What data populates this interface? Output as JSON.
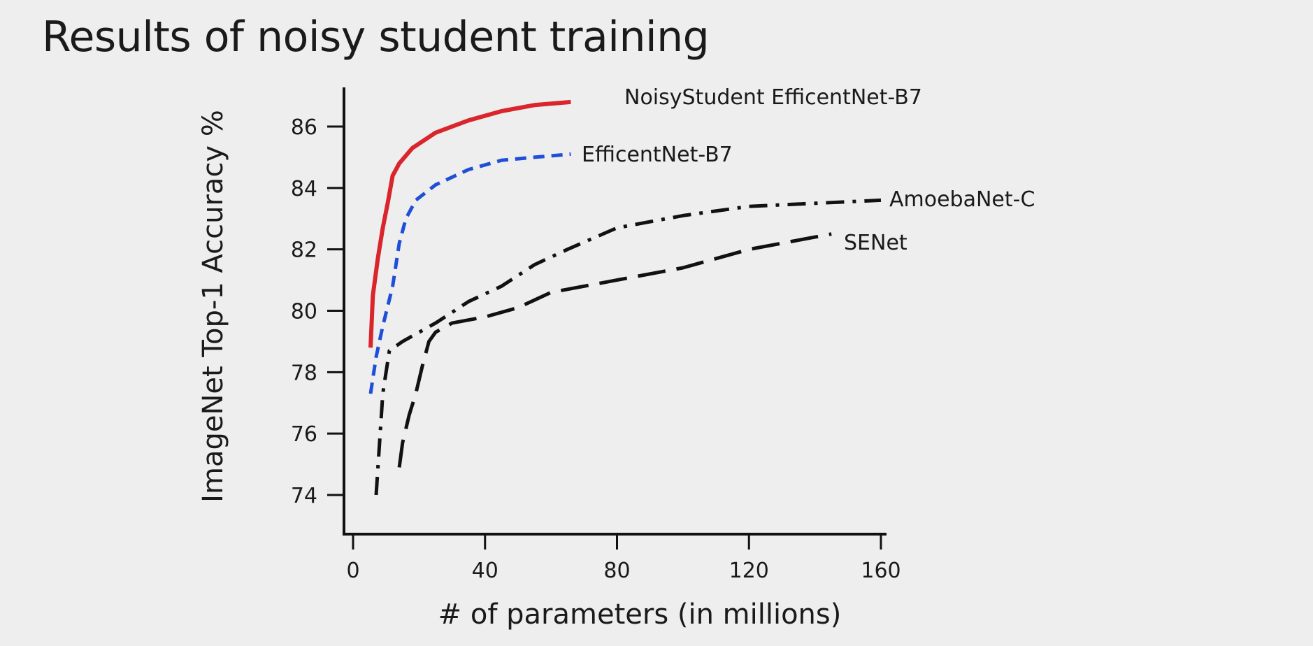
{
  "slide": {
    "title": "Results of noisy student training"
  },
  "chart_data": {
    "type": "line",
    "title": "",
    "xlabel": "# of parameters (in millions)",
    "ylabel": "ImageNet Top-1 Accuracy %",
    "xlim": [
      0,
      160
    ],
    "ylim": [
      73,
      86.5
    ],
    "xticks": [
      0,
      40,
      80,
      120,
      160
    ],
    "yticks": [
      74,
      76,
      78,
      80,
      82,
      84,
      86
    ],
    "grid": false,
    "legend": "labels at line ends",
    "series": [
      {
        "name": "NoisyStudent EfficentNet-B7",
        "color": "#d9252b",
        "style": "solid",
        "x": [
          5.3,
          6,
          7.5,
          9,
          10.5,
          12,
          14,
          18,
          25,
          35,
          45,
          55,
          66
        ],
        "y": [
          78.8,
          80.5,
          81.7,
          82.7,
          83.5,
          84.4,
          84.8,
          85.3,
          85.8,
          86.2,
          86.5,
          86.7,
          86.8
        ]
      },
      {
        "name": "EfficentNet-B7",
        "color": "#1f4fd8",
        "style": "dashed",
        "x": [
          5.3,
          7,
          9,
          12,
          14,
          16,
          19,
          25,
          35,
          45,
          55,
          66
        ],
        "y": [
          77.3,
          78.5,
          79.5,
          80.8,
          82.2,
          83.0,
          83.6,
          84.1,
          84.6,
          84.9,
          85.0,
          85.1
        ]
      },
      {
        "name": "AmoebaNet-C",
        "color": "#111111",
        "style": "dashdot",
        "x": [
          7,
          9,
          11,
          15,
          25,
          35,
          45,
          55,
          65,
          80,
          100,
          120,
          140,
          160
        ],
        "y": [
          74,
          77.3,
          78.7,
          79.0,
          79.6,
          80.3,
          80.8,
          81.5,
          82.0,
          82.7,
          83.1,
          83.4,
          83.5,
          83.6
        ]
      },
      {
        "name": "SENet",
        "color": "#111111",
        "style": "longdash",
        "x": [
          14,
          15,
          17,
          19,
          21,
          23,
          25,
          30,
          40,
          50,
          60,
          80,
          100,
          120,
          140,
          145
        ],
        "y": [
          74.9,
          75.7,
          76.6,
          77.3,
          78.2,
          79.0,
          79.3,
          79.6,
          79.8,
          80.1,
          80.6,
          81.0,
          81.4,
          82.0,
          82.4,
          82.5
        ]
      }
    ]
  }
}
